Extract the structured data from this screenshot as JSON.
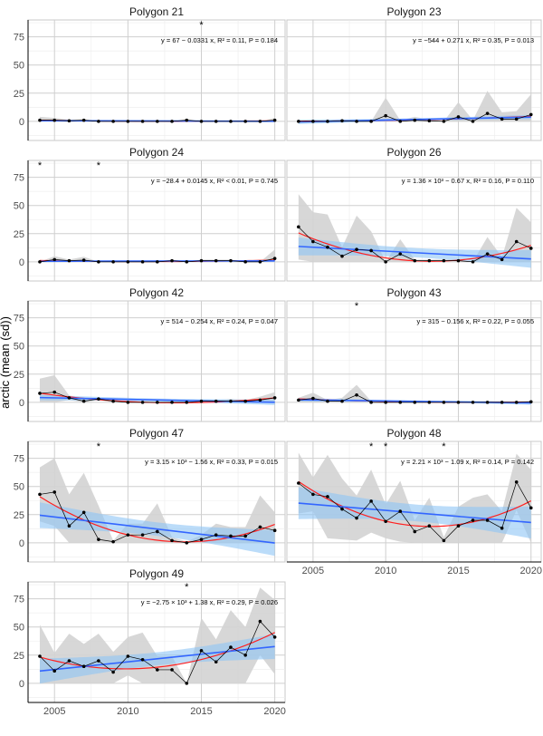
{
  "chart_data": {
    "type": "line",
    "ylabel": "arctic (mean (sd))",
    "xlabel": "",
    "xlim": [
      2003.2,
      2020.7
    ],
    "ylim": [
      -17,
      90
    ],
    "x_ticks": [
      2005,
      2010,
      2015,
      2020
    ],
    "y_ticks": [
      0,
      25,
      50,
      75
    ],
    "grid": true,
    "colors": {
      "points": "#000000",
      "ribbon_sd": "#d3d3d3",
      "linear_fit": "#3366ff",
      "linear_ci": "#8ec5f5",
      "smooth": "#ff2020"
    },
    "years": [
      2004,
      2005,
      2006,
      2007,
      2008,
      2009,
      2010,
      2011,
      2012,
      2013,
      2014,
      2015,
      2016,
      2017,
      2018,
      2019,
      2020
    ],
    "panels": [
      {
        "title": "Polygon 21",
        "equation": "y = 67 − 0.0331 x, R² = 0.11, P = 0.184",
        "stars": [
          2015
        ],
        "mean": [
          1,
          1,
          0.5,
          1,
          0,
          0,
          0,
          0,
          0,
          0,
          1,
          0,
          0,
          0,
          0,
          0,
          1
        ],
        "sd": [
          3,
          2,
          1,
          1,
          0,
          0,
          0,
          0,
          0,
          0,
          1,
          0,
          0,
          0,
          0,
          0,
          2
        ]
      },
      {
        "title": "Polygon 23",
        "equation": "y = −544 + 0.271 x, R² = 0.35, P = 0.013",
        "stars": [],
        "mean": [
          0,
          0,
          0,
          0.5,
          0,
          0,
          5,
          0,
          1,
          0.5,
          0,
          4,
          0,
          7,
          2,
          2,
          6
        ],
        "sd": [
          0,
          1,
          0,
          1,
          0,
          0,
          16,
          1,
          3,
          1,
          0,
          13,
          1,
          20,
          6,
          7,
          18
        ]
      },
      {
        "title": "Polygon 24",
        "equation": "y = −28.4 + 0.0145 x, R² < 0.01, P = 0.745",
        "stars": [
          2004,
          2008
        ],
        "mean": [
          0,
          2,
          1,
          1.5,
          0,
          0,
          0,
          0,
          0,
          1,
          0,
          1,
          1,
          1,
          0,
          0,
          3
        ],
        "sd": [
          0,
          3,
          1,
          3,
          0,
          0,
          0,
          0,
          0,
          1,
          0,
          1,
          1,
          1,
          0,
          0,
          8
        ]
      },
      {
        "title": "Polygon 26",
        "equation": "y = 1.36 × 10³ − 0.67 x, R² = 0.16, P = 0.110",
        "stars": [],
        "mean": [
          31,
          18,
          13,
          5,
          11,
          10,
          0,
          7,
          1,
          1,
          1,
          1,
          0,
          7,
          2,
          18,
          12
        ],
        "sd": [
          29,
          26,
          29,
          8,
          30,
          17,
          0,
          13,
          1,
          1,
          1,
          1,
          0,
          15,
          2,
          30,
          23
        ]
      },
      {
        "title": "Polygon 42",
        "equation": "y = 514 − 0.254 x, R² = 0.24, P = 0.047",
        "stars": [],
        "mean": [
          8,
          9,
          4,
          1,
          3,
          1,
          0,
          0,
          0,
          0,
          0,
          1,
          1,
          1,
          1,
          2,
          4
        ],
        "sd": [
          13,
          15,
          2,
          2,
          1,
          1,
          1,
          0,
          0,
          0,
          0,
          1,
          1,
          2,
          1,
          3,
          5
        ]
      },
      {
        "title": "Polygon 43",
        "equation": "y = 315 − 0.156 x, R² = 0.22, P = 0.055",
        "stars": [
          2008
        ],
        "mean": [
          2,
          3.5,
          1,
          1,
          6.5,
          0,
          0,
          0,
          0,
          0,
          0,
          0,
          0,
          0,
          0,
          0,
          0.5
        ],
        "sd": [
          2,
          5,
          1,
          3,
          9,
          1,
          0,
          0,
          0,
          0,
          0,
          0,
          0,
          0,
          0,
          0,
          1
        ]
      },
      {
        "title": "Polygon 47",
        "equation": "y = 3.15 × 10³ − 1.56 x, R² = 0.33, P = 0.015",
        "stars": [
          2008
        ],
        "mean": [
          43,
          45,
          15,
          27,
          3,
          1,
          7,
          7,
          10,
          2,
          0,
          3,
          7,
          6,
          6,
          14,
          11
        ],
        "sd": [
          24,
          30,
          28,
          35,
          30,
          1,
          10,
          10,
          25,
          3,
          1,
          4,
          10,
          8,
          8,
          28,
          16
        ]
      },
      {
        "title": "Polygon 48",
        "equation": "y = 2.21 × 10³ − 1.09 x, R² = 0.14, P = 0.142",
        "stars": [
          2009,
          2010,
          2014
        ],
        "mean": [
          53,
          43,
          41,
          30,
          22,
          37,
          19,
          28,
          10,
          15,
          2,
          15,
          20,
          20,
          13,
          54,
          31
        ],
        "sd": [
          27,
          15,
          37,
          27,
          20,
          28,
          15,
          27,
          10,
          25,
          3,
          17,
          20,
          23,
          15,
          25,
          34
        ]
      },
      {
        "title": "Polygon 49",
        "equation": "y = −2.75 × 10³ + 1.38 x, R² = 0.29, P = 0.026",
        "stars": [
          2014
        ],
        "mean": [
          24,
          11,
          20,
          15,
          20,
          10,
          24,
          21,
          12,
          12,
          0,
          29,
          19,
          32,
          25,
          55,
          41
        ],
        "sd": [
          28,
          16,
          24,
          20,
          24,
          18,
          17,
          24,
          12,
          12,
          0,
          29,
          20,
          33,
          25,
          30,
          33
        ]
      }
    ]
  }
}
